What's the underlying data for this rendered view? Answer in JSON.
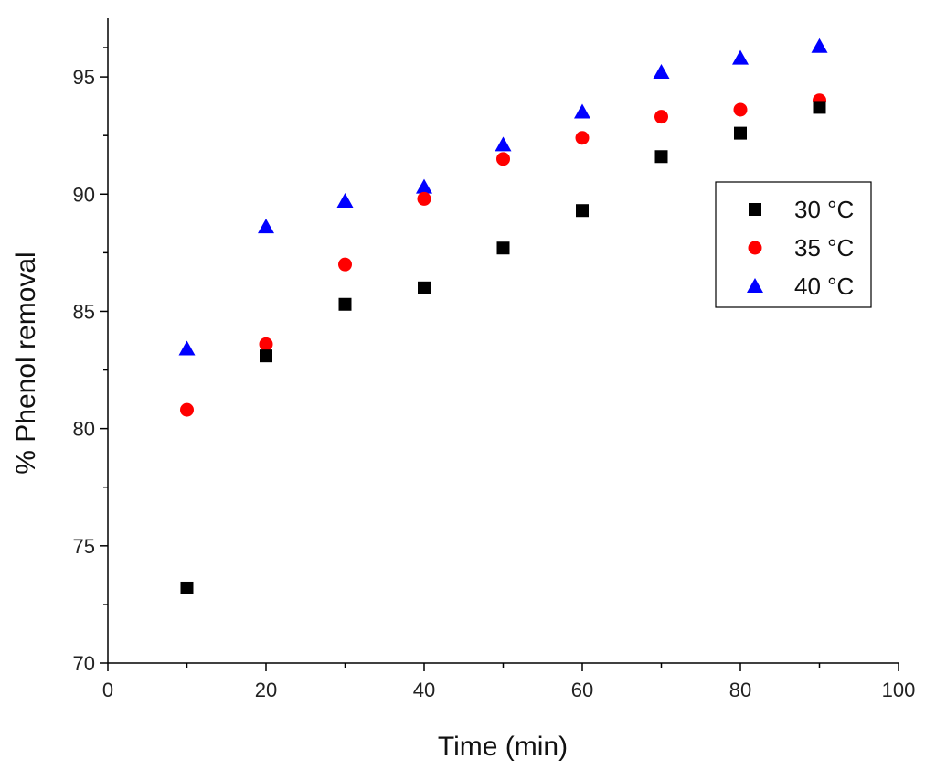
{
  "chart_data": {
    "type": "scatter",
    "xlabel": "Time (min)",
    "ylabel": "% Phenol removal",
    "xlim": [
      0,
      100
    ],
    "ylim": [
      70,
      97.5
    ],
    "xticks": [
      0,
      20,
      40,
      60,
      80,
      100
    ],
    "yticks": [
      70,
      75,
      80,
      85,
      90,
      95
    ],
    "grid": false,
    "legend_position": "right-middle",
    "x": [
      10,
      20,
      30,
      40,
      50,
      60,
      70,
      80,
      90
    ],
    "series": [
      {
        "name": "30 °C",
        "marker": "square",
        "color": "#000000",
        "values": [
          73.2,
          83.1,
          85.3,
          86.0,
          87.7,
          89.3,
          91.6,
          92.6,
          93.7
        ]
      },
      {
        "name": "35 °C",
        "marker": "circle",
        "color": "#ff0000",
        "values": [
          80.8,
          83.6,
          87.0,
          89.8,
          91.5,
          92.4,
          93.3,
          93.6,
          94.0
        ]
      },
      {
        "name": "40 °C",
        "marker": "triangle",
        "color": "#0000ff",
        "values": [
          83.4,
          88.6,
          89.7,
          90.3,
          92.1,
          93.5,
          95.2,
          95.8,
          96.3
        ]
      }
    ]
  }
}
